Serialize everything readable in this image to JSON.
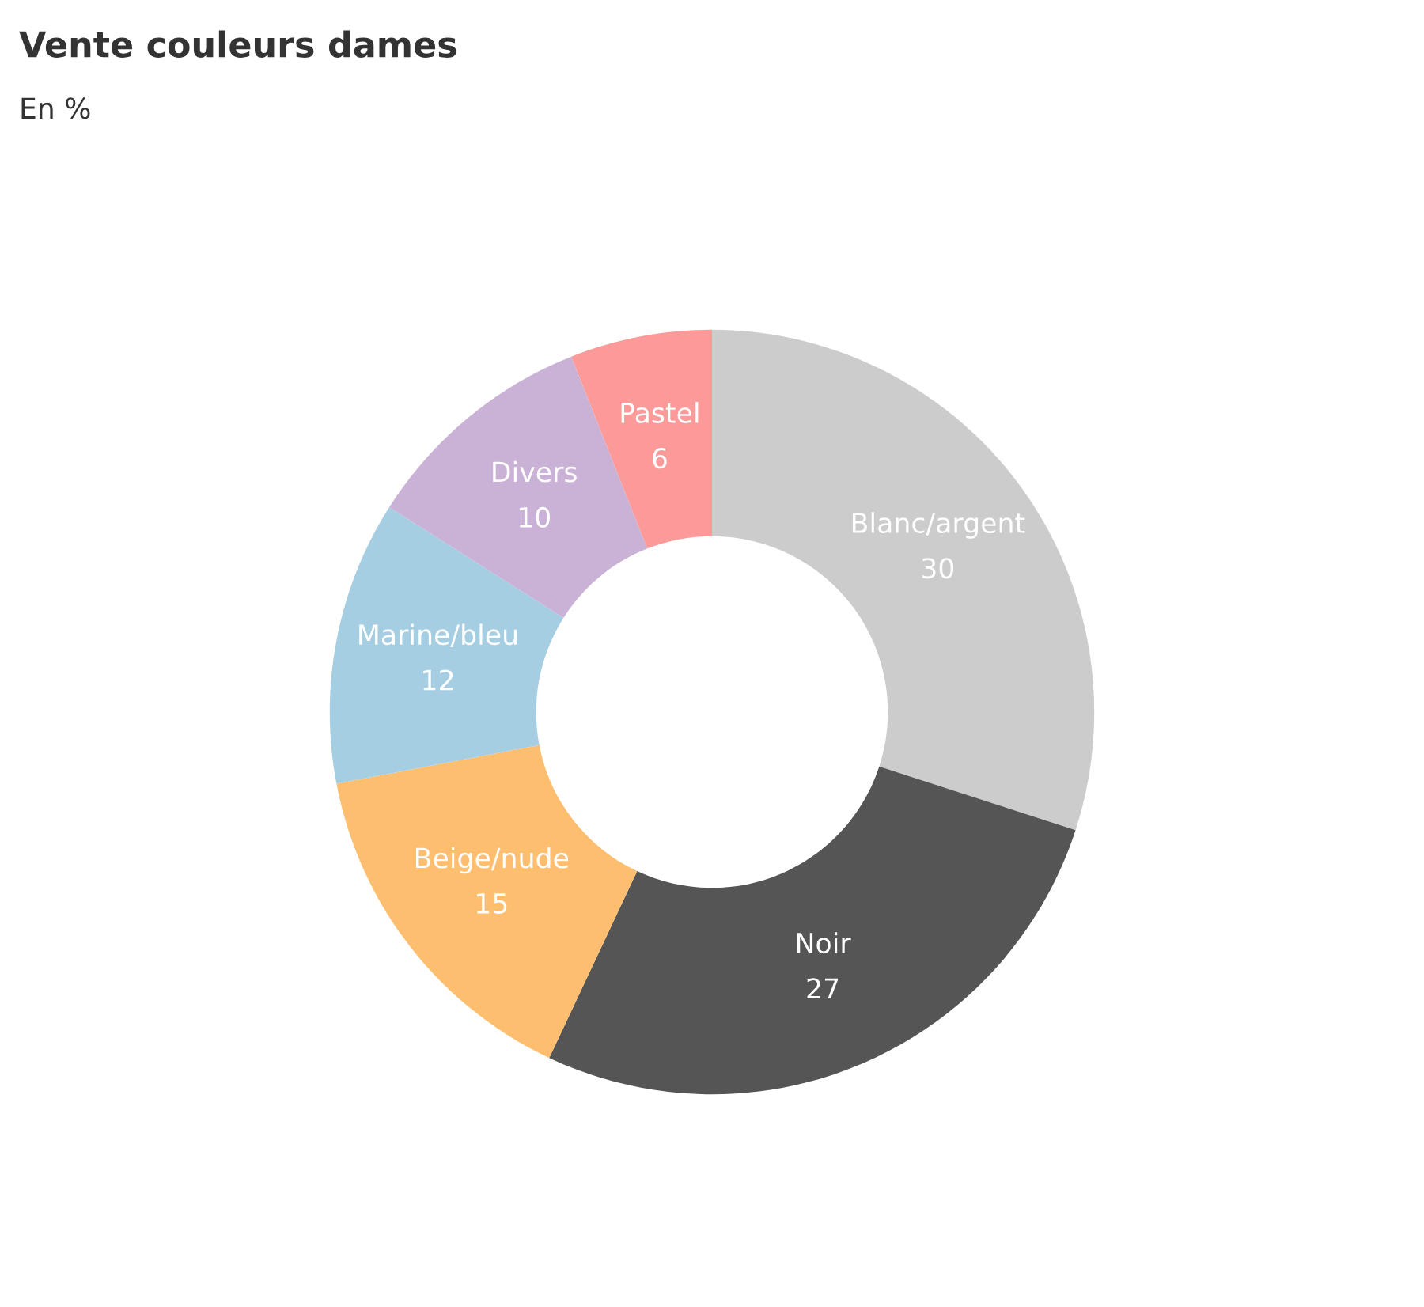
{
  "chart_data": {
    "type": "donut",
    "title": "Vente couleurs dames",
    "subtitle": "En %",
    "categories": [
      "Blanc/argent",
      "Noir",
      "Beige/nude",
      "Marine/bleu",
      "Divers",
      "Pastel"
    ],
    "values": [
      30,
      27,
      15,
      12,
      10,
      6
    ],
    "colors": [
      "#cccccc",
      "#555555",
      "#fdbf6f",
      "#a6cee3",
      "#cab2d6",
      "#fb9a99"
    ],
    "data_labels": true,
    "legend": false
  }
}
